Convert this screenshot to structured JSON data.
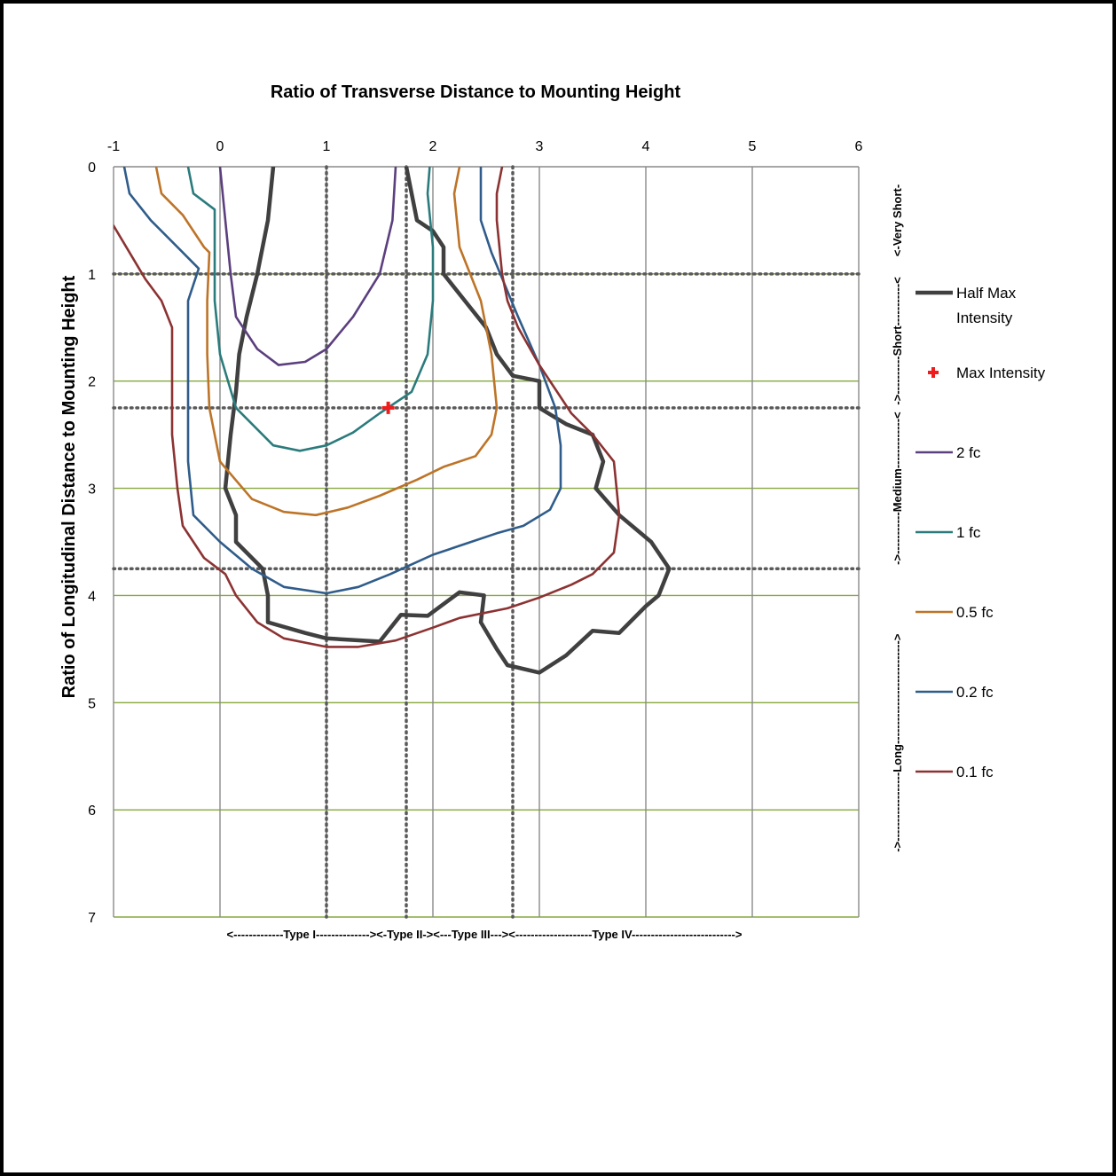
{
  "chart_data": {
    "type": "line",
    "title": "Ratio of Transverse Distance to Mounting Height",
    "ylabel": "Ratio of Longitudinal Distance to Mounting Height",
    "xlim": [
      -1,
      6
    ],
    "ylim": [
      0,
      7
    ],
    "y_inverted": true,
    "x_ticks": [
      "-1",
      "0",
      "1",
      "2",
      "3",
      "4",
      "5",
      "6"
    ],
    "y_ticks": [
      "0",
      "1",
      "2",
      "3",
      "4",
      "5",
      "6",
      "7"
    ],
    "x_ticks_position": "top",
    "grid": {
      "vertical": true,
      "horizontal": true
    },
    "legend": "right",
    "colors": {
      "half_max": "#404040",
      "max": "#ee1c1c",
      "fc2": "#5b3f7e",
      "fc1": "#2b7b7c",
      "fc05": "#bd7428",
      "fc02": "#2f5c8a",
      "fc01": "#8c3232",
      "vgrid": "#8a8a8a",
      "hgrid": "#86a83d",
      "dotted": "#5a5a5a"
    },
    "type_boundaries_x": [
      1,
      1.75,
      2.75
    ],
    "length_boundaries_y": [
      1,
      2.25,
      3.75
    ],
    "type_labels": "<-------------Type I--------------><-Type II-><---Type III---><--------------------Type IV--------------------------->",
    "length_labels": {
      "very_short": "<-Very Short-",
      "short": "->----------Short-----------<",
      "medium": "->-----------Medium-------------<",
      "long": "->------------------Long--------------------------->"
    },
    "max_point": {
      "x": 1.58,
      "y": 2.25,
      "name": "Max Intensity"
    },
    "series": [
      {
        "name": "Half Max Intensity",
        "key": "half_max",
        "segments": [
          [
            [
              0.5,
              0
            ],
            [
              0.45,
              0.5
            ],
            [
              0.35,
              1
            ],
            [
              0.25,
              1.4
            ],
            [
              0.18,
              1.75
            ],
            [
              0.15,
              2.1
            ],
            [
              0.1,
              2.5
            ],
            [
              0.05,
              3
            ],
            [
              0.15,
              3.25
            ],
            [
              0.15,
              3.5
            ],
            [
              0.4,
              3.75
            ],
            [
              0.45,
              4
            ],
            [
              0.45,
              4.25
            ],
            [
              0.8,
              4.35
            ],
            [
              1,
              4.4
            ],
            [
              1.5,
              4.43
            ],
            [
              1.7,
              4.18
            ],
            [
              1.95,
              4.19
            ],
            [
              2.25,
              3.97
            ],
            [
              2.48,
              4
            ],
            [
              2.45,
              4.25
            ],
            [
              2.6,
              4.5
            ],
            [
              2.7,
              4.65
            ],
            [
              3,
              4.72
            ],
            [
              3.25,
              4.56
            ],
            [
              3.5,
              4.33
            ],
            [
              3.75,
              4.35
            ],
            [
              4,
              4.1
            ],
            [
              4.12,
              4
            ],
            [
              4.22,
              3.75
            ],
            [
              4.05,
              3.5
            ],
            [
              3.75,
              3.25
            ],
            [
              3.53,
              3
            ],
            [
              3.6,
              2.75
            ],
            [
              3.5,
              2.5
            ],
            [
              3.25,
              2.4
            ],
            [
              3,
              2.25
            ],
            [
              3,
              2
            ],
            [
              2.75,
              1.95
            ],
            [
              2.6,
              1.75
            ],
            [
              2.5,
              1.5
            ],
            [
              2.3,
              1.25
            ],
            [
              2.1,
              1
            ],
            [
              2.1,
              0.75
            ],
            [
              2,
              0.6
            ],
            [
              1.85,
              0.5
            ],
            [
              1.8,
              0.25
            ],
            [
              1.75,
              0
            ]
          ]
        ]
      },
      {
        "name": "2 fc",
        "key": "fc2",
        "segments": [
          [
            [
              0,
              0
            ],
            [
              0.05,
              0.5
            ],
            [
              0.1,
              1
            ],
            [
              0.15,
              1.4
            ],
            [
              0.35,
              1.7
            ],
            [
              0.55,
              1.85
            ],
            [
              0.8,
              1.82
            ],
            [
              1,
              1.7
            ],
            [
              1.25,
              1.4
            ],
            [
              1.5,
              1
            ],
            [
              1.62,
              0.5
            ],
            [
              1.65,
              0
            ]
          ]
        ]
      },
      {
        "name": "1 fc",
        "key": "fc1",
        "segments": [
          [
            [
              -0.3,
              0
            ],
            [
              -0.25,
              0.25
            ],
            [
              -0.05,
              0.4
            ],
            [
              -0.05,
              0.75
            ],
            [
              -0.05,
              1.25
            ],
            [
              0,
              1.75
            ],
            [
              0.15,
              2.25
            ],
            [
              0.5,
              2.6
            ],
            [
              0.75,
              2.65
            ],
            [
              1,
              2.6
            ],
            [
              1.25,
              2.48
            ],
            [
              1.5,
              2.3
            ],
            [
              1.8,
              2.1
            ],
            [
              1.95,
              1.75
            ],
            [
              2,
              1.25
            ],
            [
              2,
              0.75
            ],
            [
              1.95,
              0.25
            ],
            [
              1.97,
              0
            ]
          ]
        ]
      },
      {
        "name": "0.5 fc",
        "key": "fc05",
        "segments": [
          [
            [
              -0.6,
              0
            ],
            [
              -0.55,
              0.25
            ],
            [
              -0.35,
              0.45
            ],
            [
              -0.15,
              0.75
            ],
            [
              -0.1,
              0.8
            ],
            [
              -0.12,
              1.25
            ],
            [
              -0.12,
              1.75
            ],
            [
              -0.1,
              2.25
            ],
            [
              0,
              2.75
            ],
            [
              0.3,
              3.1
            ],
            [
              0.6,
              3.22
            ],
            [
              0.9,
              3.25
            ],
            [
              1.2,
              3.18
            ],
            [
              1.5,
              3.07
            ],
            [
              1.85,
              2.92
            ],
            [
              2.1,
              2.8
            ],
            [
              2.4,
              2.7
            ],
            [
              2.55,
              2.5
            ],
            [
              2.6,
              2.25
            ],
            [
              2.55,
              1.75
            ],
            [
              2.45,
              1.25
            ],
            [
              2.25,
              0.75
            ],
            [
              2.2,
              0.25
            ],
            [
              2.25,
              0
            ]
          ]
        ]
      },
      {
        "name": "0.2 fc",
        "key": "fc02",
        "segments": [
          [
            [
              -0.9,
              0
            ],
            [
              -0.85,
              0.25
            ],
            [
              -0.65,
              0.5
            ],
            [
              -0.4,
              0.75
            ],
            [
              -0.2,
              0.95
            ],
            [
              -0.3,
              1.25
            ],
            [
              -0.3,
              2
            ],
            [
              -0.3,
              2.75
            ],
            [
              -0.25,
              3.25
            ],
            [
              0,
              3.5
            ],
            [
              0.3,
              3.75
            ],
            [
              0.6,
              3.92
            ],
            [
              1,
              3.98
            ],
            [
              1.3,
              3.92
            ],
            [
              1.6,
              3.8
            ],
            [
              2,
              3.62
            ],
            [
              2.3,
              3.52
            ],
            [
              2.6,
              3.42
            ],
            [
              2.85,
              3.35
            ],
            [
              3.1,
              3.2
            ],
            [
              3.2,
              3
            ],
            [
              3.2,
              2.6
            ],
            [
              3.15,
              2.25
            ],
            [
              3,
              1.85
            ],
            [
              2.8,
              1.4
            ],
            [
              2.55,
              0.8
            ],
            [
              2.45,
              0.5
            ],
            [
              2.45,
              0
            ]
          ]
        ]
      },
      {
        "name": "0.1 fc",
        "key": "fc01",
        "segments": [
          [
            [
              -1,
              0.55
            ],
            [
              -0.85,
              0.8
            ],
            [
              -0.7,
              1.05
            ],
            [
              -0.55,
              1.25
            ],
            [
              -0.45,
              1.5
            ],
            [
              -0.45,
              2
            ],
            [
              -0.45,
              2.5
            ],
            [
              -0.4,
              3
            ],
            [
              -0.35,
              3.35
            ],
            [
              -0.15,
              3.65
            ],
            [
              0.05,
              3.8
            ],
            [
              0.15,
              4
            ],
            [
              0.35,
              4.25
            ],
            [
              0.6,
              4.4
            ],
            [
              1,
              4.48
            ],
            [
              1.3,
              4.48
            ],
            [
              1.65,
              4.42
            ],
            [
              2,
              4.3
            ],
            [
              2.25,
              4.21
            ],
            [
              2.7,
              4.12
            ],
            [
              3,
              4.02
            ],
            [
              3.3,
              3.9
            ],
            [
              3.5,
              3.8
            ],
            [
              3.7,
              3.6
            ],
            [
              3.75,
              3.25
            ],
            [
              3.7,
              2.75
            ],
            [
              3.5,
              2.5
            ],
            [
              3.3,
              2.3
            ],
            [
              3,
              1.85
            ],
            [
              2.8,
              1.5
            ],
            [
              2.7,
              1.25
            ],
            [
              2.65,
              1
            ],
            [
              2.6,
              0.5
            ],
            [
              2.6,
              0.25
            ],
            [
              2.65,
              0
            ]
          ]
        ]
      }
    ],
    "legend_entries": [
      {
        "name": "Half Max Intensity",
        "key": "half_max",
        "kind": "line"
      },
      {
        "name": "Max Intensity",
        "key": "max",
        "kind": "marker"
      },
      {
        "name": "2 fc",
        "key": "fc2",
        "kind": "line"
      },
      {
        "name": "1 fc",
        "key": "fc1",
        "kind": "line"
      },
      {
        "name": "0.5 fc",
        "key": "fc05",
        "kind": "line"
      },
      {
        "name": "0.2 fc",
        "key": "fc02",
        "kind": "line"
      },
      {
        "name": "0.1 fc",
        "key": "fc01",
        "kind": "line"
      }
    ]
  }
}
